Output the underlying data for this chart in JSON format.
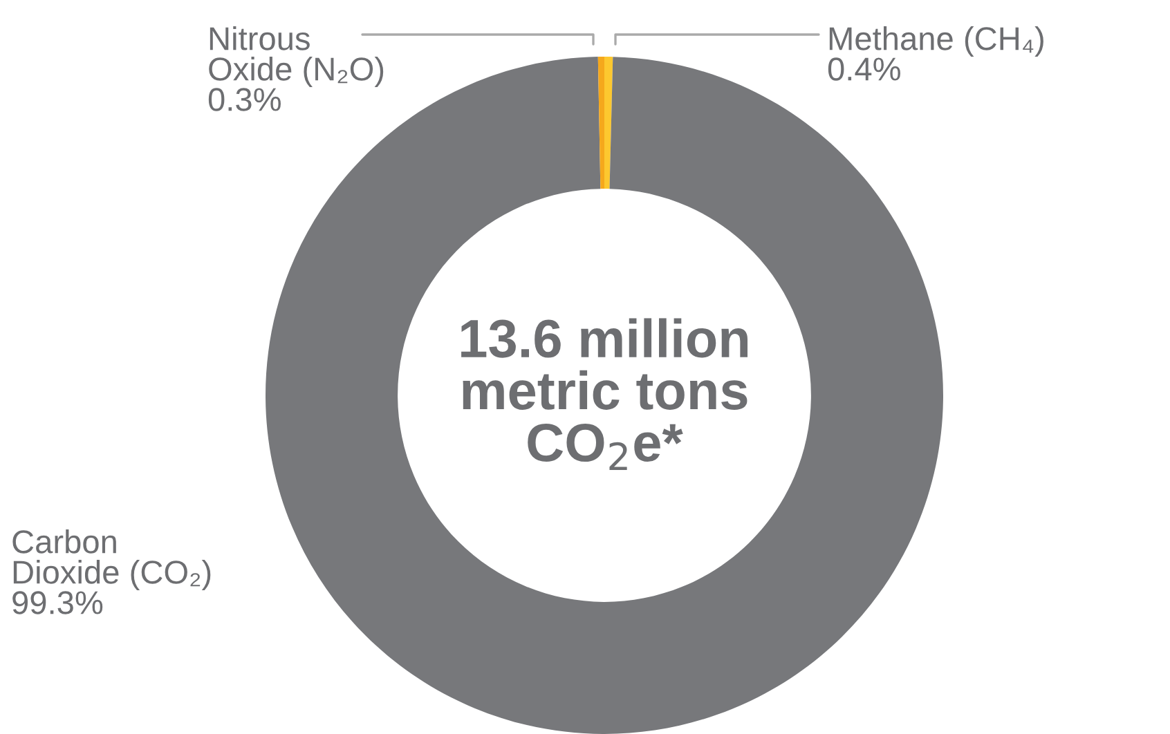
{
  "chart_data": {
    "type": "donut",
    "categories": [
      "Methane (CH₄)",
      "Carbon\nDioxide (CO₂)",
      "Nitrous\nOxide (N₂O)"
    ],
    "values": [
      0.4,
      99.3,
      0.3
    ],
    "value_labels": [
      "0.4%",
      "99.3%",
      "0.3%"
    ],
    "colors": [
      "#fdc82f",
      "#77787b",
      "#f5a81c"
    ],
    "annotations": [
      "13.6 million\nmetric tons\nCO$_{2}$e*"
    ],
    "legend": false
  }
}
